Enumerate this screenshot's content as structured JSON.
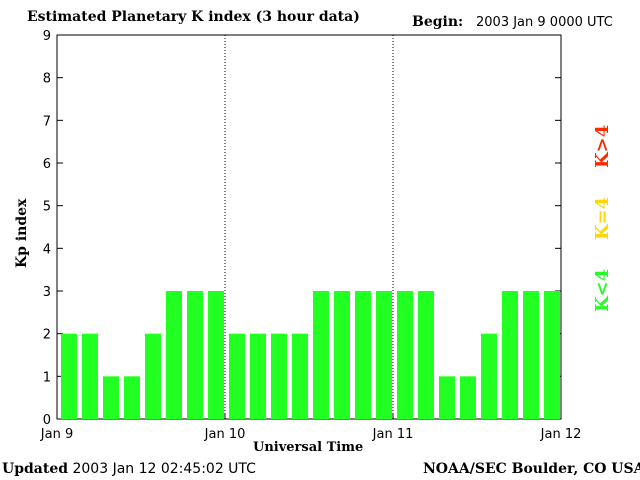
{
  "header": {
    "title": "Estimated Planetary K index (3 hour data)",
    "begin_label": "Begin:",
    "begin_value": "2003 Jan 9 0000 UTC"
  },
  "footer": {
    "updated_label": "Updated",
    "updated_value": "2003 Jan 12 02:45:02 UTC",
    "source": "NOAA/SEC Boulder, CO USA"
  },
  "legend": {
    "high": "K>4",
    "equal": "K=4",
    "low": "K<4",
    "colors": {
      "high": "#ff2a00",
      "equal": "#ffd700",
      "low": "#22ff22"
    }
  },
  "chart_data": {
    "type": "bar",
    "xlabel": "Universal Time",
    "ylabel": "Kp index",
    "ylim": [
      0,
      9
    ],
    "yticks": [
      0,
      1,
      2,
      3,
      4,
      5,
      6,
      7,
      8,
      9
    ],
    "x_tick_labels": [
      "Jan 9",
      "Jan 10",
      "Jan 11",
      "Jan 12"
    ],
    "grid": "vertical dotted lines at day boundaries",
    "bar_color": "#22ff22",
    "values": [
      2,
      2,
      1,
      1,
      2,
      3,
      3,
      3,
      2,
      2,
      2,
      2,
      3,
      3,
      3,
      3,
      3,
      3,
      1,
      1,
      2,
      3,
      3,
      3
    ]
  }
}
